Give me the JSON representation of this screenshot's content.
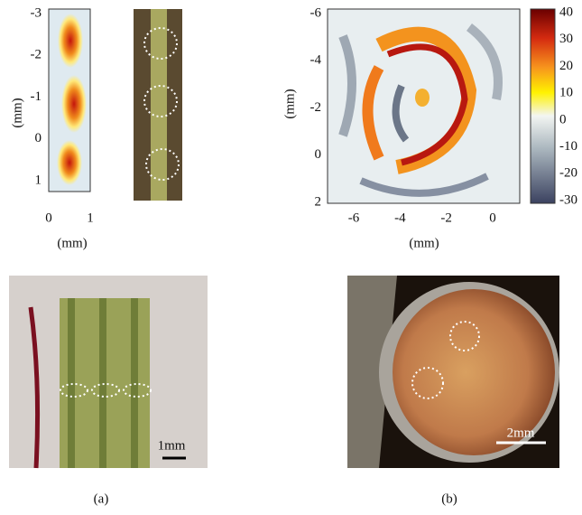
{
  "panel_a": {
    "heatmap": {
      "y_ticks": [
        -3,
        -2,
        -1,
        0,
        1
      ],
      "x_ticks": [
        0,
        1
      ],
      "y_label": "(mm)",
      "x_label": "(mm)"
    },
    "scale_bar": "1mm",
    "label": "(a)"
  },
  "panel_b": {
    "heatmap": {
      "y_ticks": [
        -6,
        -4,
        -2,
        0,
        2
      ],
      "x_ticks": [
        -6,
        -4,
        -2,
        0
      ],
      "y_label": "(mm)",
      "x_label": "(mm)"
    },
    "colorbar_ticks": [
      40,
      30,
      20,
      10,
      0,
      -10,
      -20,
      -30
    ],
    "scale_bar": "2mm",
    "label": "(b)"
  }
}
